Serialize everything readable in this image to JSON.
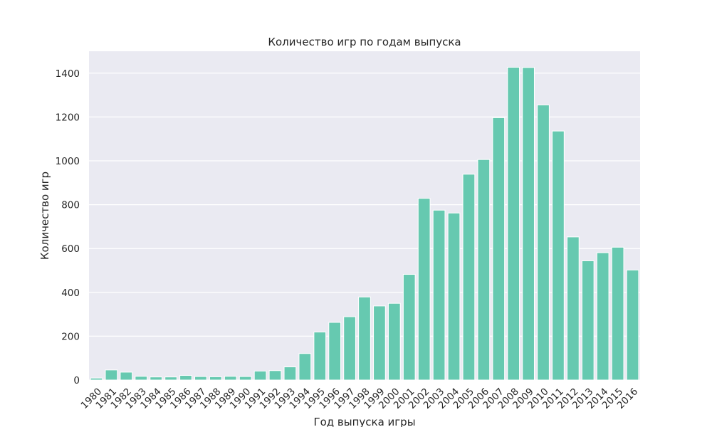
{
  "chart_data": {
    "type": "bar",
    "title": "Количество игр по годам выпуска",
    "xlabel": "Год выпуска игры",
    "ylabel": "Количество игр",
    "categories": [
      "1980",
      "1981",
      "1982",
      "1983",
      "1984",
      "1985",
      "1986",
      "1987",
      "1988",
      "1989",
      "1990",
      "1991",
      "1992",
      "1993",
      "1994",
      "1995",
      "1996",
      "1997",
      "1998",
      "1999",
      "2000",
      "2001",
      "2002",
      "2003",
      "2004",
      "2005",
      "2006",
      "2007",
      "2008",
      "2009",
      "2010",
      "2011",
      "2012",
      "2013",
      "2014",
      "2015",
      "2016"
    ],
    "values": [
      9,
      46,
      36,
      17,
      14,
      14,
      21,
      16,
      15,
      17,
      16,
      41,
      43,
      60,
      121,
      219,
      263,
      289,
      379,
      338,
      350,
      482,
      829,
      775,
      762,
      939,
      1006,
      1197,
      1427,
      1426,
      1255,
      1136,
      653,
      544,
      581,
      606,
      502
    ],
    "ylim": [
      0,
      1500
    ],
    "yticks": [
      0,
      200,
      400,
      600,
      800,
      1000,
      1200,
      1400
    ],
    "grid": true,
    "legend": "none",
    "colors": {
      "bar": "#66c9b0",
      "plot_background": "#eaeaf2",
      "grid": "#ffffff",
      "text": "#262626"
    }
  }
}
